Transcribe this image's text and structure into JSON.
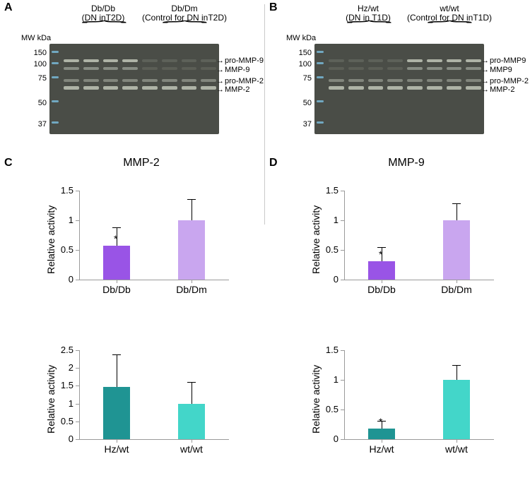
{
  "figure": {
    "panels": {
      "A": {
        "letter": "A",
        "groups": [
          {
            "name": "Db/Db",
            "sub": "(DN inT2D)"
          },
          {
            "name": "Db/Dm",
            "sub": "(Control for DN inT2D)"
          }
        ],
        "mw_title": "MW kDa",
        "mw_markers": [
          150,
          100,
          75,
          50,
          37
        ],
        "band_labels": [
          "pro-MMP-9",
          "MMP-9",
          "pro-MMP-2",
          "MMP-2"
        ],
        "gel": {
          "background": "#4a4d47",
          "band_light": "#aeb3a6",
          "band_mid": "#8e9489",
          "band_faint": "#6b6f66",
          "marker_color": "#7abfe0"
        }
      },
      "B": {
        "letter": "B",
        "groups": [
          {
            "name": "Hz/wt",
            "sub": "(DN in T1D)"
          },
          {
            "name": "wt/wt",
            "sub": "(Control for DN inT1D)"
          }
        ],
        "mw_title": "MW kDa",
        "mw_markers": [
          150,
          100,
          75,
          50,
          37
        ],
        "band_labels": [
          "pro-MMP9",
          "MMP9",
          "pro-MMP-2",
          "MMP-2"
        ],
        "gel": {
          "background": "#4a4d47",
          "band_light": "#aeb3a6",
          "band_mid": "#8e9489",
          "band_faint": "#6b6f66",
          "marker_color": "#7abfe0"
        }
      },
      "C": {
        "letter": "C",
        "title": "MMP-2",
        "charts": [
          {
            "type": "bar",
            "ylabel": "Relative activity",
            "ylim": [
              0,
              1.5
            ],
            "yticks": [
              0,
              0.5,
              1,
              1.5
            ],
            "categories": [
              "Db/Db",
              "Db/Dm"
            ],
            "values": [
              0.57,
              1.0
            ],
            "errors": [
              0.31,
              0.36
            ],
            "sig": [
              "*",
              ""
            ],
            "bar_colors": [
              "#9954e6",
              "#c9a6ef"
            ],
            "bar_width": 0.35,
            "axis_color": "#9a9a9a",
            "tick_fontsize": 13,
            "label_fontsize": 14
          },
          {
            "type": "bar",
            "ylabel": "Relative activity",
            "ylim": [
              0,
              2.5
            ],
            "yticks": [
              0,
              0.5,
              1,
              1.5,
              2,
              2.5
            ],
            "categories": [
              "Hz/wt",
              "wt/wt"
            ],
            "values": [
              1.46,
              1.0
            ],
            "errors": [
              0.92,
              0.6
            ],
            "sig": [
              "",
              ""
            ],
            "bar_colors": [
              "#1f9493",
              "#43d6c9"
            ],
            "bar_width": 0.35,
            "axis_color": "#9a9a9a",
            "tick_fontsize": 13,
            "label_fontsize": 14
          }
        ]
      },
      "D": {
        "letter": "D",
        "title": "MMP-9",
        "charts": [
          {
            "type": "bar",
            "ylabel": "Relative activity",
            "ylim": [
              0,
              1.5
            ],
            "yticks": [
              0,
              0.5,
              1,
              1.5
            ],
            "categories": [
              "Db/Db",
              "Db/Dm"
            ],
            "values": [
              0.31,
              1.0
            ],
            "errors": [
              0.24,
              0.28
            ],
            "sig": [
              "*",
              ""
            ],
            "bar_colors": [
              "#9954e6",
              "#c9a6ef"
            ],
            "bar_width": 0.35,
            "axis_color": "#9a9a9a",
            "tick_fontsize": 13,
            "label_fontsize": 14
          },
          {
            "type": "bar",
            "ylabel": "Relative activity",
            "ylim": [
              0,
              1.5
            ],
            "yticks": [
              0,
              0.5,
              1,
              1.5
            ],
            "categories": [
              "Hz/wt",
              "wt/wt"
            ],
            "values": [
              0.18,
              1.0
            ],
            "errors": [
              0.13,
              0.25
            ],
            "sig": [
              "*",
              ""
            ],
            "bar_colors": [
              "#1f9493",
              "#43d6c9"
            ],
            "bar_width": 0.35,
            "axis_color": "#9a9a9a",
            "tick_fontsize": 13,
            "label_fontsize": 14
          }
        ]
      }
    }
  }
}
